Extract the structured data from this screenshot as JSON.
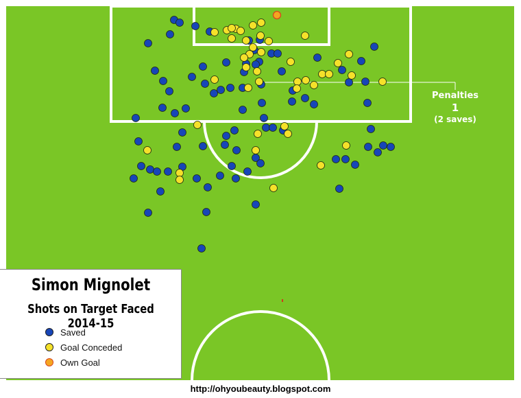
{
  "chart_data": {
    "type": "scatter",
    "title": "Simon Mignolet",
    "subtitle": "Shots on Target Faced 2014-15",
    "legend": [
      {
        "label": "Saved",
        "color": "#1746b8",
        "key": "saved"
      },
      {
        "label": "Goal Conceded",
        "color": "#f5e12a",
        "key": "goal"
      },
      {
        "label": "Own Goal",
        "color": "#f5a621",
        "key": "own"
      }
    ],
    "annotation": {
      "title": "Penalties",
      "count": "1",
      "detail": "(2 saves)"
    },
    "points": {
      "saved": [
        [
          254,
          29
        ],
        [
          262,
          33
        ],
        [
          285,
          38
        ],
        [
          248,
          50
        ],
        [
          306,
          46
        ],
        [
          216,
          63
        ],
        [
          363,
          59
        ],
        [
          379,
          58
        ],
        [
          371,
          73
        ],
        [
          396,
          78
        ],
        [
          405,
          78
        ],
        [
          463,
          84
        ],
        [
          546,
          68
        ],
        [
          378,
          90
        ],
        [
          359,
          93
        ],
        [
          373,
          94
        ],
        [
          330,
          91
        ],
        [
          296,
          97
        ],
        [
          527,
          89
        ],
        [
          499,
          102
        ],
        [
          226,
          103
        ],
        [
          356,
          105
        ],
        [
          411,
          104
        ],
        [
          238,
          118
        ],
        [
          509,
          120
        ],
        [
          533,
          119
        ],
        [
          280,
          112
        ],
        [
          247,
          133
        ],
        [
          299,
          122
        ],
        [
          312,
          136
        ],
        [
          322,
          131
        ],
        [
          336,
          128
        ],
        [
          354,
          128
        ],
        [
          381,
          123
        ],
        [
          427,
          132
        ],
        [
          445,
          143
        ],
        [
          458,
          152
        ],
        [
          536,
          150
        ],
        [
          271,
          158
        ],
        [
          255,
          165
        ],
        [
          237,
          157
        ],
        [
          382,
          150
        ],
        [
          426,
          148
        ],
        [
          354,
          160
        ],
        [
          198,
          172
        ],
        [
          385,
          172
        ],
        [
          388,
          186
        ],
        [
          398,
          186
        ],
        [
          413,
          190
        ],
        [
          541,
          188
        ],
        [
          266,
          193
        ],
        [
          342,
          190
        ],
        [
          330,
          198
        ],
        [
          202,
          206
        ],
        [
          296,
          213
        ],
        [
          328,
          211
        ],
        [
          258,
          214
        ],
        [
          345,
          219
        ],
        [
          537,
          214
        ],
        [
          559,
          212
        ],
        [
          570,
          214
        ],
        [
          551,
          222
        ],
        [
          490,
          232
        ],
        [
          504,
          232
        ],
        [
          518,
          240
        ],
        [
          206,
          242
        ],
        [
          219,
          247
        ],
        [
          373,
          230
        ],
        [
          380,
          238
        ],
        [
          338,
          242
        ],
        [
          266,
          243
        ],
        [
          229,
          250
        ],
        [
          245,
          250
        ],
        [
          361,
          250
        ],
        [
          321,
          256
        ],
        [
          344,
          260
        ],
        [
          195,
          260
        ],
        [
          303,
          273
        ],
        [
          287,
          260
        ],
        [
          495,
          275
        ],
        [
          234,
          279
        ],
        [
          373,
          298
        ],
        [
          301,
          309
        ],
        [
          216,
          310
        ],
        [
          294,
          362
        ]
      ],
      "goal": [
        [
          331,
          44
        ],
        [
          313,
          47
        ],
        [
          369,
          37
        ],
        [
          381,
          33
        ],
        [
          344,
          42
        ],
        [
          338,
          41
        ],
        [
          351,
          45
        ],
        [
          359,
          59
        ],
        [
          380,
          52
        ],
        [
          445,
          52
        ],
        [
          392,
          60
        ],
        [
          338,
          56
        ],
        [
          369,
          69
        ],
        [
          364,
          79
        ],
        [
          381,
          76
        ],
        [
          509,
          79
        ],
        [
          356,
          84
        ],
        [
          424,
          90
        ],
        [
          493,
          92
        ],
        [
          359,
          98
        ],
        [
          375,
          104
        ],
        [
          313,
          116
        ],
        [
          470,
          108
        ],
        [
          480,
          108
        ],
        [
          513,
          110
        ],
        [
          434,
          119
        ],
        [
          446,
          117
        ],
        [
          458,
          124
        ],
        [
          558,
          119
        ],
        [
          433,
          129
        ],
        [
          362,
          128
        ],
        [
          378,
          119
        ],
        [
          288,
          182
        ],
        [
          376,
          195
        ],
        [
          415,
          184
        ],
        [
          420,
          195
        ],
        [
          505,
          212
        ],
        [
          215,
          219
        ],
        [
          373,
          219
        ],
        [
          468,
          241
        ],
        [
          262,
          252
        ],
        [
          262,
          262
        ],
        [
          399,
          274
        ]
      ],
      "own": [
        [
          404,
          22
        ]
      ]
    }
  },
  "credit": "http://ohyoubeauty.blogspot.com"
}
